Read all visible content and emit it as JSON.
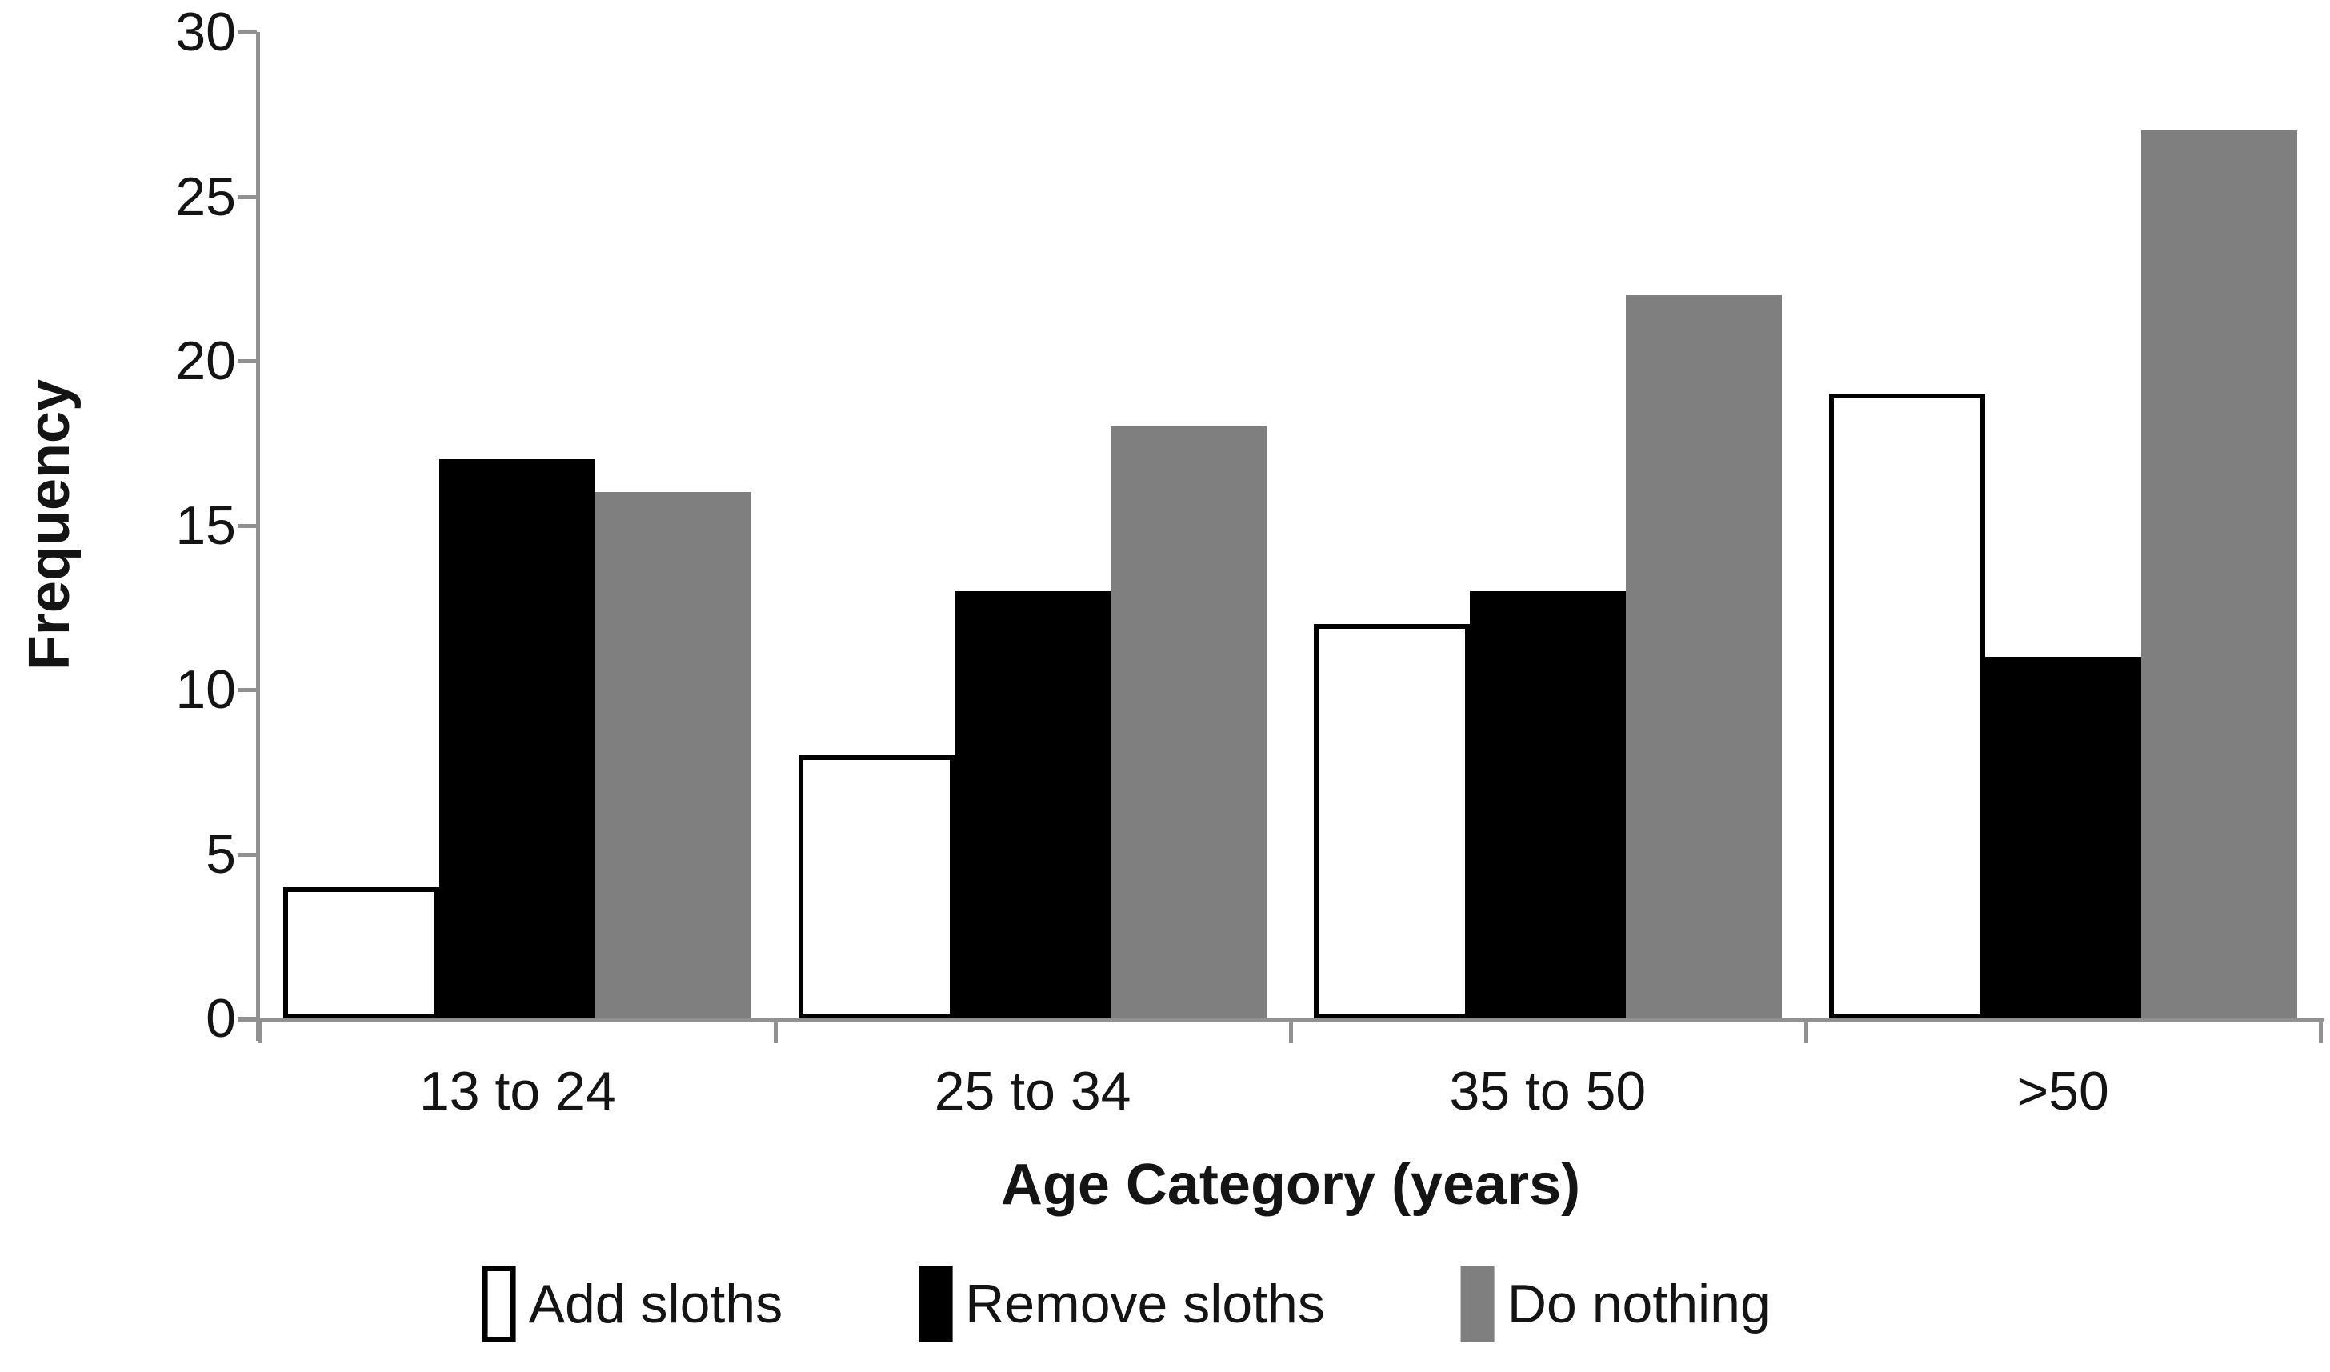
{
  "chart_data": {
    "type": "bar",
    "title": "",
    "categories": [
      "13 to 24",
      "25 to 34",
      "35 to 50",
      ">50"
    ],
    "series": [
      {
        "name": "Add sloths",
        "values": [
          4,
          8,
          12,
          19
        ],
        "fill": "#FFFFFF",
        "border": "#000000"
      },
      {
        "name": "Remove sloths",
        "values": [
          17,
          13,
          13,
          11
        ],
        "fill": "#000000",
        "border": "#000000"
      },
      {
        "name": "Do nothing",
        "values": [
          16,
          18,
          22,
          27
        ],
        "fill": "#7F7F7F",
        "border": "#7F7F7F"
      }
    ],
    "xlabel": "Age Category (years)",
    "ylabel": "Frequency",
    "ylim": [
      0,
      30
    ],
    "yticks": [
      0,
      5,
      10,
      15,
      20,
      25,
      30
    ],
    "grid": false,
    "legend_position": "bottom",
    "colors": {
      "axis": "#919191",
      "text": "#141414",
      "background": "#FFFFFF"
    }
  }
}
